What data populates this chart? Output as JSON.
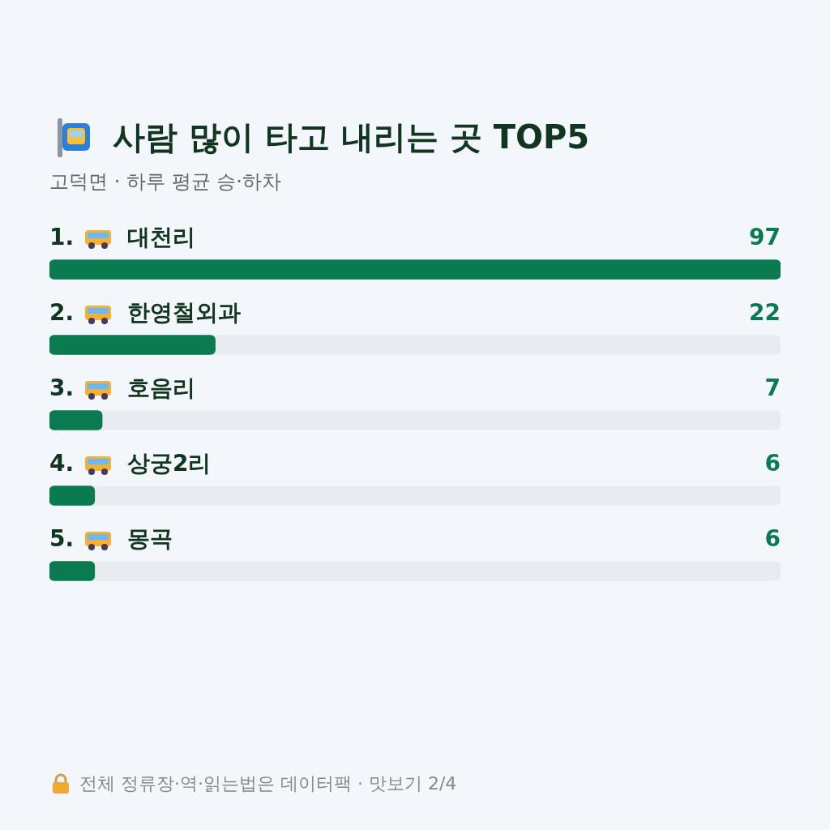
{
  "chart_data": {
    "type": "bar",
    "orientation": "horizontal",
    "title": "사람 많이 타고 내리는 곳 TOP5",
    "subtitle": "고덕면 · 하루 평균 승·하차",
    "categories": [
      "1. 대천리",
      "2. 한영철외과",
      "3. 호음리",
      "4. 상궁2리",
      "5. 몽곡"
    ],
    "values": [
      97,
      22,
      7,
      6,
      6
    ],
    "color": "#0b7a50",
    "data_labels": true,
    "legend": false,
    "annotations": [
      "전체 정류장·역·읽는법은 데이터팩 · 맛보기 2/4"
    ]
  }
}
